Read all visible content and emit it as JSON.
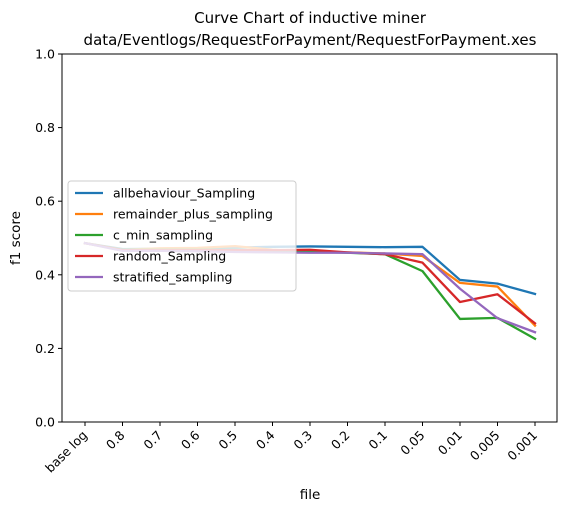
{
  "chart_data": {
    "type": "line",
    "title_line1": "Curve Chart of inductive miner",
    "title_line2": "data/Eventlogs/RequestForPayment/RequestForPayment.xes",
    "xlabel": "file",
    "ylabel": "f1 score",
    "categories": [
      "base log",
      "0.8",
      "0.7",
      "0.6",
      "0.5",
      "0.4",
      "0.3",
      "0.2",
      "0.1",
      "0.05",
      "0.01",
      "0.005",
      "0.001"
    ],
    "ylim": [
      0,
      1.0
    ],
    "yticks": [
      "0.0",
      "0.2",
      "0.4",
      "0.6",
      "0.8",
      "1.0"
    ],
    "legend_position": "center-left",
    "grid": false,
    "series": [
      {
        "name": "allbehaviour_Sampling",
        "color": "#1f77b4",
        "values": [
          0.486,
          0.47,
          0.471,
          0.472,
          0.474,
          0.476,
          0.477,
          0.476,
          0.475,
          0.476,
          0.386,
          0.376,
          0.348
        ]
      },
      {
        "name": "remainder_plus_sampling",
        "color": "#ff7f0e",
        "values": [
          0.486,
          0.468,
          0.472,
          0.473,
          0.478,
          0.468,
          0.463,
          0.461,
          0.458,
          0.451,
          0.378,
          0.368,
          0.262
        ]
      },
      {
        "name": "c_min_sampling",
        "color": "#2ca02c",
        "values": [
          0.486,
          0.468,
          0.468,
          0.468,
          0.468,
          0.466,
          0.463,
          0.46,
          0.456,
          0.41,
          0.28,
          0.283,
          0.226
        ]
      },
      {
        "name": "random_Sampling",
        "color": "#d62728",
        "values": [
          0.486,
          0.467,
          0.467,
          0.467,
          0.467,
          0.467,
          0.468,
          0.461,
          0.456,
          0.433,
          0.326,
          0.347,
          0.268
        ]
      },
      {
        "name": "stratified_sampling",
        "color": "#9467bd",
        "values": [
          0.486,
          0.465,
          0.465,
          0.464,
          0.462,
          0.461,
          0.46,
          0.46,
          0.458,
          0.456,
          0.362,
          0.282,
          0.244
        ]
      }
    ]
  }
}
